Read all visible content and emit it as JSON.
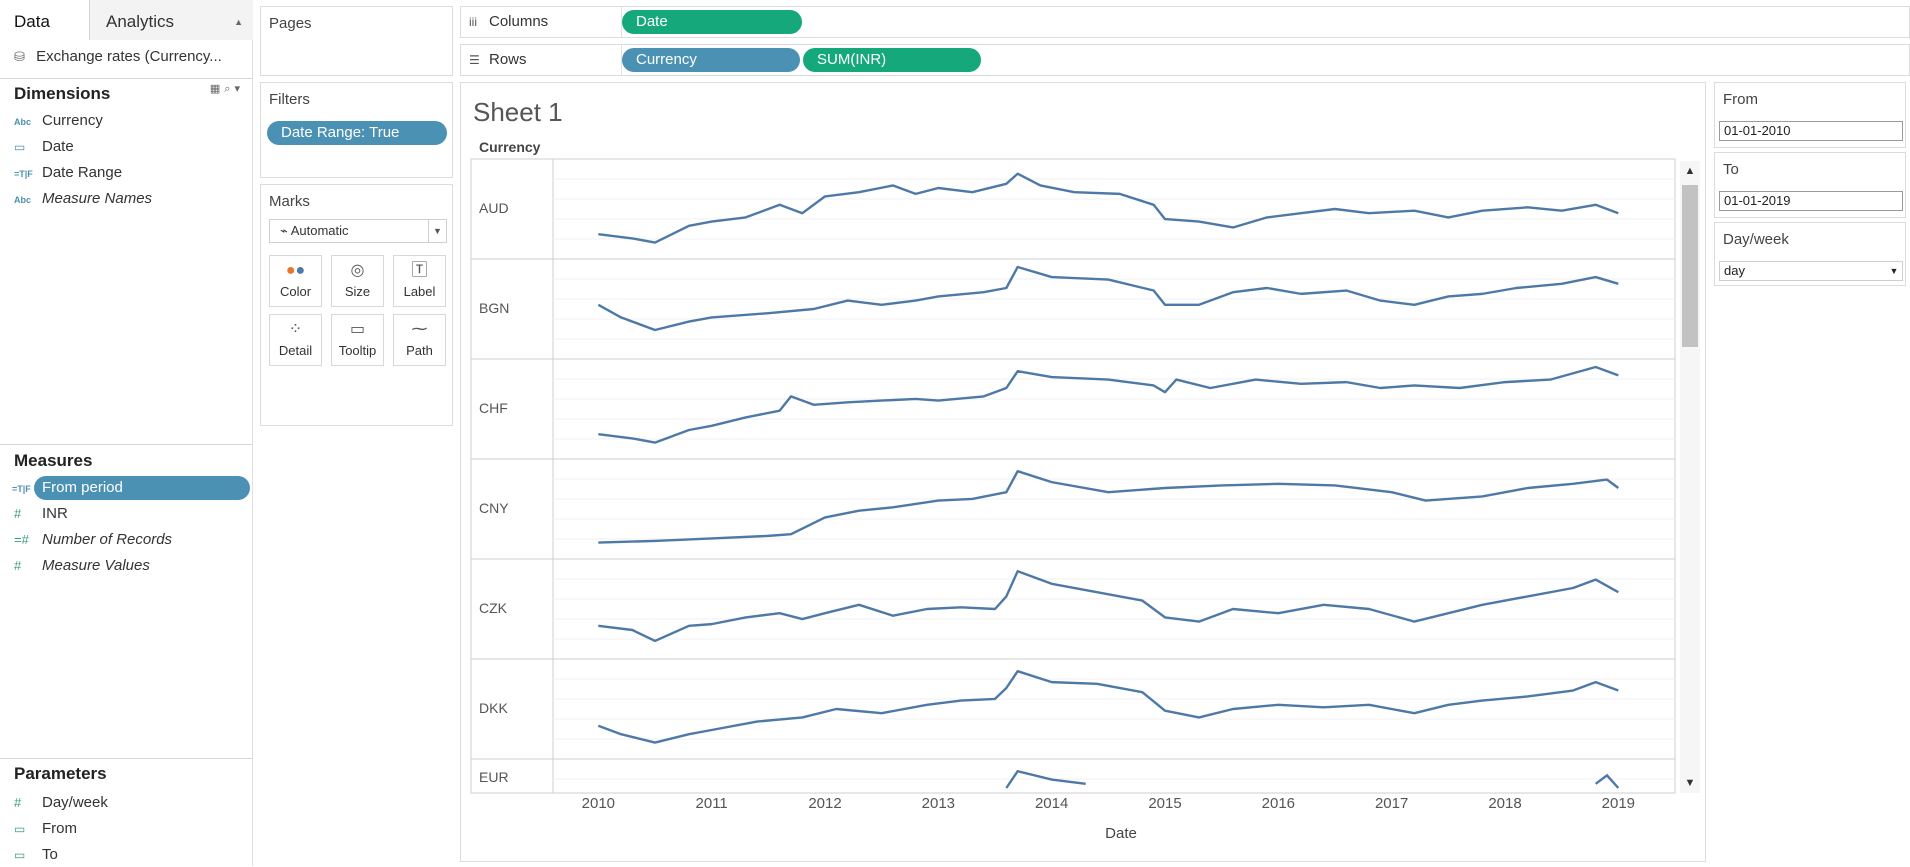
{
  "data_pane": {
    "tabs": [
      {
        "label": "Data"
      },
      {
        "label": "Analytics"
      }
    ],
    "datasource": "Exchange rates (Currency...",
    "dimensions": {
      "title": "Dimensions",
      "fields": [
        {
          "label": "Currency",
          "type": "Abc"
        },
        {
          "label": "Date",
          "type": "date"
        },
        {
          "label": "Date Range",
          "type": "T|F"
        },
        {
          "label": "Measure Names",
          "type": "Abc"
        }
      ]
    },
    "measures": {
      "title": "Measures",
      "fields": [
        {
          "label": "From period",
          "type": "T|F"
        },
        {
          "label": "INR",
          "type": "#"
        },
        {
          "label": "Number of Records",
          "type": "#"
        },
        {
          "label": "Measure Values",
          "type": "#"
        }
      ]
    },
    "parameters": {
      "title": "Parameters",
      "fields": [
        {
          "label": "Day/week",
          "type": "#"
        },
        {
          "label": "From",
          "type": "date"
        },
        {
          "label": "To",
          "type": "date"
        }
      ]
    }
  },
  "pages": {
    "title": "Pages"
  },
  "filters": {
    "title": "Filters",
    "pill": "Date Range: True"
  },
  "marks": {
    "title": "Marks",
    "type": "Automatic",
    "buttons": [
      {
        "label": "Color",
        "icon": "color-icon"
      },
      {
        "label": "Size",
        "icon": "size-icon"
      },
      {
        "label": "Label",
        "icon": "label-icon"
      },
      {
        "label": "Detail",
        "icon": "detail-icon"
      },
      {
        "label": "Tooltip",
        "icon": "tooltip-icon"
      },
      {
        "label": "Path",
        "icon": "path-icon"
      }
    ]
  },
  "columns": {
    "label": "Columns",
    "pills": [
      "Date"
    ]
  },
  "rows": {
    "label": "Rows",
    "pills": [
      "Currency",
      "SUM(INR)"
    ]
  },
  "sheet": {
    "title": "Sheet 1",
    "row_header": "Currency",
    "x_title": "Date"
  },
  "params": {
    "from": {
      "title": "From",
      "value": "01-01-2010"
    },
    "to": {
      "title": "To",
      "value": "01-01-2019"
    },
    "dayweek": {
      "title": "Day/week",
      "value": "day"
    }
  },
  "colors": {
    "line": "#4e79a7",
    "pill_blue": "#4a91b4",
    "pill_green": "#14a87a"
  },
  "chart_data": {
    "type": "line",
    "x_ticks": [
      "2010",
      "2011",
      "2012",
      "2013",
      "2014",
      "2015",
      "2016",
      "2017",
      "2018",
      "2019"
    ],
    "x_range": [
      2009.6,
      2019.5
    ],
    "xlabel": "Date",
    "series": [
      {
        "name": "AUD",
        "x": [
          2010.0,
          2010.3,
          2010.5,
          2010.8,
          2011.0,
          2011.3,
          2011.6,
          2011.8,
          2012.0,
          2012.3,
          2012.6,
          2012.8,
          2013.0,
          2013.3,
          2013.6,
          2013.7,
          2013.9,
          2014.2,
          2014.6,
          2014.9,
          2015.0,
          2015.3,
          2015.6,
          2015.9,
          2016.2,
          2016.5,
          2016.8,
          2017.2,
          2017.5,
          2017.8,
          2018.2,
          2018.5,
          2018.8,
          2019.0
        ],
        "y": [
          0.2,
          0.15,
          0.1,
          0.3,
          0.35,
          0.4,
          0.55,
          0.45,
          0.65,
          0.7,
          0.78,
          0.68,
          0.75,
          0.7,
          0.8,
          0.92,
          0.78,
          0.7,
          0.68,
          0.55,
          0.38,
          0.35,
          0.28,
          0.4,
          0.45,
          0.5,
          0.45,
          0.48,
          0.4,
          0.48,
          0.52,
          0.48,
          0.55,
          0.45
        ]
      },
      {
        "name": "BGN",
        "x": [
          2010.0,
          2010.2,
          2010.5,
          2010.8,
          2011.0,
          2011.5,
          2011.9,
          2012.2,
          2012.5,
          2012.8,
          2013.0,
          2013.4,
          2013.6,
          2013.7,
          2014.0,
          2014.5,
          2014.9,
          2015.0,
          2015.3,
          2015.6,
          2015.9,
          2016.2,
          2016.6,
          2016.9,
          2017.2,
          2017.5,
          2017.8,
          2018.1,
          2018.5,
          2018.8,
          2019.0
        ],
        "y": [
          0.55,
          0.4,
          0.25,
          0.35,
          0.4,
          0.45,
          0.5,
          0.6,
          0.55,
          0.6,
          0.65,
          0.7,
          0.75,
          1.0,
          0.88,
          0.85,
          0.72,
          0.55,
          0.55,
          0.7,
          0.75,
          0.68,
          0.72,
          0.6,
          0.55,
          0.65,
          0.68,
          0.75,
          0.8,
          0.88,
          0.8
        ]
      },
      {
        "name": "CHF",
        "x": [
          2010.0,
          2010.3,
          2010.5,
          2010.8,
          2011.0,
          2011.3,
          2011.6,
          2011.7,
          2011.9,
          2012.2,
          2012.5,
          2012.8,
          2013.0,
          2013.4,
          2013.6,
          2013.7,
          2014.0,
          2014.5,
          2014.9,
          2015.0,
          2015.1,
          2015.4,
          2015.8,
          2016.2,
          2016.6,
          2016.9,
          2017.2,
          2017.6,
          2018.0,
          2018.4,
          2018.8,
          2019.0
        ],
        "y": [
          0.2,
          0.15,
          0.1,
          0.25,
          0.3,
          0.4,
          0.48,
          0.65,
          0.55,
          0.58,
          0.6,
          0.62,
          0.6,
          0.65,
          0.75,
          0.95,
          0.88,
          0.85,
          0.78,
          0.7,
          0.85,
          0.75,
          0.85,
          0.8,
          0.82,
          0.75,
          0.78,
          0.75,
          0.82,
          0.85,
          1.0,
          0.9
        ]
      },
      {
        "name": "CNY",
        "x": [
          2010.0,
          2010.5,
          2011.0,
          2011.5,
          2011.7,
          2012.0,
          2012.3,
          2012.6,
          2013.0,
          2013.3,
          2013.6,
          2013.7,
          2014.0,
          2014.5,
          2015.0,
          2015.5,
          2016.0,
          2016.5,
          2017.0,
          2017.3,
          2017.8,
          2018.2,
          2018.6,
          2018.9,
          2019.0
        ],
        "y": [
          0.1,
          0.12,
          0.15,
          0.18,
          0.2,
          0.4,
          0.48,
          0.52,
          0.6,
          0.62,
          0.7,
          0.95,
          0.82,
          0.7,
          0.75,
          0.78,
          0.8,
          0.78,
          0.7,
          0.6,
          0.65,
          0.75,
          0.8,
          0.85,
          0.75
        ]
      },
      {
        "name": "CZK",
        "x": [
          2010.0,
          2010.3,
          2010.5,
          2010.8,
          2011.0,
          2011.3,
          2011.6,
          2011.8,
          2012.0,
          2012.3,
          2012.6,
          2012.9,
          2013.2,
          2013.5,
          2013.6,
          2013.7,
          2014.0,
          2014.4,
          2014.8,
          2015.0,
          2015.3,
          2015.6,
          2016.0,
          2016.4,
          2016.8,
          2017.2,
          2017.5,
          2017.8,
          2018.2,
          2018.6,
          2018.8,
          2019.0
        ],
        "y": [
          0.3,
          0.25,
          0.12,
          0.3,
          0.32,
          0.4,
          0.45,
          0.38,
          0.45,
          0.55,
          0.42,
          0.5,
          0.52,
          0.5,
          0.65,
          0.95,
          0.8,
          0.7,
          0.6,
          0.4,
          0.35,
          0.5,
          0.45,
          0.55,
          0.5,
          0.35,
          0.45,
          0.55,
          0.65,
          0.75,
          0.85,
          0.7
        ]
      },
      {
        "name": "DKK",
        "x": [
          2010.0,
          2010.2,
          2010.5,
          2010.8,
          2011.0,
          2011.4,
          2011.8,
          2012.1,
          2012.5,
          2012.9,
          2013.2,
          2013.5,
          2013.6,
          2013.7,
          2014.0,
          2014.4,
          2014.8,
          2015.0,
          2015.3,
          2015.6,
          2016.0,
          2016.4,
          2016.8,
          2017.2,
          2017.5,
          2017.8,
          2018.2,
          2018.6,
          2018.8,
          2019.0
        ],
        "y": [
          0.3,
          0.2,
          0.1,
          0.2,
          0.25,
          0.35,
          0.4,
          0.5,
          0.45,
          0.55,
          0.6,
          0.62,
          0.75,
          0.95,
          0.82,
          0.8,
          0.7,
          0.48,
          0.4,
          0.5,
          0.55,
          0.52,
          0.55,
          0.45,
          0.55,
          0.6,
          0.65,
          0.72,
          0.82,
          0.72
        ]
      },
      {
        "name": "EUR",
        "x": [
          2013.6,
          2013.7,
          2014.0,
          2014.3,
          2018.8,
          2018.9,
          2019.0
        ],
        "y": [
          0.75,
          0.95,
          0.85,
          0.8,
          0.8,
          0.9,
          0.75
        ]
      }
    ]
  }
}
